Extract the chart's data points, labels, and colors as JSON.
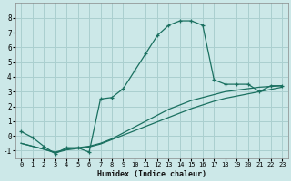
{
  "xlabel": "Humidex (Indice chaleur)",
  "bg_color": "#cce8e8",
  "grid_color": "#aacfcf",
  "line_color": "#1a7060",
  "xlim": [
    -0.5,
    23.5
  ],
  "ylim": [
    -1.5,
    9.0
  ],
  "yticks": [
    -1,
    0,
    1,
    2,
    3,
    4,
    5,
    6,
    7,
    8
  ],
  "xticks": [
    0,
    1,
    2,
    3,
    4,
    5,
    6,
    7,
    8,
    9,
    10,
    11,
    12,
    13,
    14,
    15,
    16,
    17,
    18,
    19,
    20,
    21,
    22,
    23
  ],
  "line1_x": [
    0,
    1,
    2,
    3,
    4,
    5,
    6,
    7,
    8,
    9,
    10,
    11,
    12,
    13,
    14,
    15,
    16,
    17,
    18,
    19,
    20,
    21,
    22,
    23
  ],
  "line1_y": [
    0.3,
    -0.1,
    -0.7,
    -1.2,
    -0.8,
    -0.8,
    -1.1,
    2.5,
    2.6,
    3.2,
    4.4,
    5.6,
    6.8,
    7.5,
    7.8,
    7.8,
    7.5,
    3.8,
    3.5,
    3.5,
    3.5,
    3.0,
    3.4,
    3.4
  ],
  "line2_x": [
    0,
    1,
    2,
    3,
    4,
    5,
    6,
    7,
    8,
    9,
    10,
    11,
    12,
    13,
    14,
    15,
    16,
    17,
    18,
    19,
    20,
    21,
    22,
    23
  ],
  "line2_y": [
    -0.5,
    -0.7,
    -0.9,
    -1.1,
    -0.9,
    -0.8,
    -0.7,
    -0.5,
    -0.2,
    0.2,
    0.6,
    1.0,
    1.4,
    1.8,
    2.1,
    2.4,
    2.6,
    2.8,
    3.0,
    3.1,
    3.2,
    3.3,
    3.35,
    3.4
  ],
  "line3_x": [
    0,
    1,
    2,
    3,
    4,
    5,
    6,
    7,
    8,
    9,
    10,
    11,
    12,
    13,
    14,
    15,
    16,
    17,
    18,
    19,
    20,
    21,
    22,
    23
  ],
  "line3_y": [
    -0.5,
    -0.7,
    -0.9,
    -1.15,
    -0.95,
    -0.85,
    -0.75,
    -0.55,
    -0.25,
    0.05,
    0.35,
    0.65,
    0.95,
    1.25,
    1.55,
    1.85,
    2.1,
    2.35,
    2.55,
    2.7,
    2.85,
    3.0,
    3.15,
    3.3
  ]
}
